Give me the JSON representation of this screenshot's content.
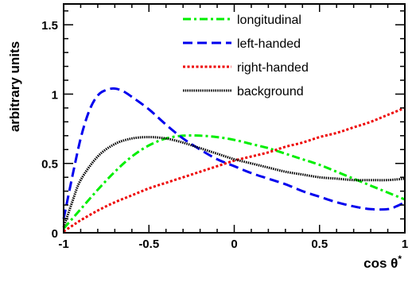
{
  "chart_data": {
    "type": "line",
    "xlabel": "cos θ*",
    "ylabel": "arbitrary units",
    "xlim": [
      -1,
      1
    ],
    "ylim": [
      0,
      1.65
    ],
    "xticks": [
      {
        "value": -1,
        "label": "-1"
      },
      {
        "value": -0.5,
        "label": "-0.5"
      },
      {
        "value": 0,
        "label": "0"
      },
      {
        "value": 0.5,
        "label": "0.5"
      },
      {
        "value": 1,
        "label": "1"
      }
    ],
    "yticks": [
      {
        "value": 0,
        "label": "0"
      },
      {
        "value": 0.5,
        "label": "0.5"
      },
      {
        "value": 1,
        "label": "1"
      },
      {
        "value": 1.5,
        "label": "1.5"
      }
    ],
    "legend_position": "top-right",
    "grid": false,
    "series": [
      {
        "name": "longitudinal",
        "color": "#00ee00",
        "style": "dash-dot",
        "x": [
          -1.0,
          -0.9,
          -0.8,
          -0.7,
          -0.6,
          -0.5,
          -0.4,
          -0.3,
          -0.2,
          -0.1,
          0.0,
          0.1,
          0.2,
          0.3,
          0.4,
          0.5,
          0.6,
          0.7,
          0.8,
          0.9,
          1.0
        ],
        "y": [
          0.03,
          0.17,
          0.31,
          0.44,
          0.55,
          0.63,
          0.68,
          0.7,
          0.7,
          0.69,
          0.67,
          0.64,
          0.61,
          0.57,
          0.53,
          0.49,
          0.44,
          0.39,
          0.34,
          0.29,
          0.24
        ]
      },
      {
        "name": "left-handed",
        "color": "#0000ee",
        "style": "dashed",
        "x": [
          -1.0,
          -0.95,
          -0.9,
          -0.85,
          -0.8,
          -0.75,
          -0.7,
          -0.65,
          -0.6,
          -0.5,
          -0.4,
          -0.3,
          -0.2,
          -0.1,
          0.0,
          0.1,
          0.2,
          0.3,
          0.4,
          0.5,
          0.6,
          0.7,
          0.8,
          0.9,
          0.95,
          1.0
        ],
        "y": [
          0.1,
          0.4,
          0.68,
          0.88,
          0.99,
          1.03,
          1.04,
          1.02,
          0.98,
          0.89,
          0.78,
          0.68,
          0.6,
          0.53,
          0.48,
          0.43,
          0.39,
          0.35,
          0.3,
          0.26,
          0.22,
          0.19,
          0.17,
          0.17,
          0.19,
          0.22
        ]
      },
      {
        "name": "right-handed",
        "color": "#ee0000",
        "style": "dotted",
        "x": [
          -1.0,
          -0.95,
          -0.9,
          -0.8,
          -0.7,
          -0.6,
          -0.5,
          -0.4,
          -0.3,
          -0.2,
          -0.1,
          0.0,
          0.1,
          0.2,
          0.3,
          0.4,
          0.5,
          0.6,
          0.7,
          0.8,
          0.9,
          1.0
        ],
        "y": [
          0.01,
          0.05,
          0.09,
          0.16,
          0.22,
          0.27,
          0.32,
          0.36,
          0.4,
          0.44,
          0.48,
          0.52,
          0.55,
          0.58,
          0.62,
          0.65,
          0.69,
          0.72,
          0.76,
          0.8,
          0.85,
          0.9
        ]
      },
      {
        "name": "background",
        "color": "#000000",
        "style": "fine-dotted",
        "x": [
          -1.0,
          -0.95,
          -0.9,
          -0.8,
          -0.7,
          -0.6,
          -0.5,
          -0.4,
          -0.3,
          -0.2,
          -0.1,
          0.0,
          0.1,
          0.2,
          0.3,
          0.4,
          0.5,
          0.6,
          0.7,
          0.8,
          0.9,
          1.0
        ],
        "y": [
          0.04,
          0.22,
          0.38,
          0.55,
          0.64,
          0.68,
          0.69,
          0.68,
          0.65,
          0.61,
          0.57,
          0.53,
          0.5,
          0.47,
          0.44,
          0.42,
          0.4,
          0.39,
          0.38,
          0.38,
          0.38,
          0.39
        ]
      }
    ]
  }
}
